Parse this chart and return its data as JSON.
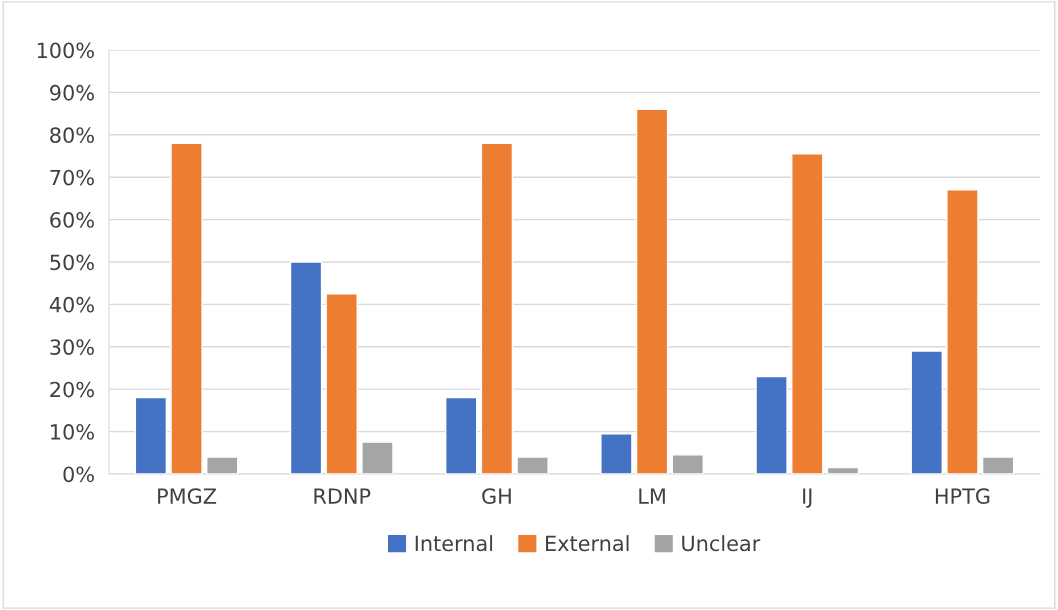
{
  "chart_data": {
    "type": "bar",
    "categories": [
      "PMGZ",
      "RDNP",
      "GH",
      "LM",
      "IJ",
      "HPTG"
    ],
    "series": [
      {
        "name": "Internal",
        "color": "#4472c4",
        "values": [
          18,
          50,
          18,
          9.5,
          23,
          29
        ]
      },
      {
        "name": "External",
        "color": "#ed7d31",
        "values": [
          78,
          42.5,
          78,
          86,
          75.5,
          67
        ]
      },
      {
        "name": "Unclear",
        "color": "#a5a5a5",
        "values": [
          4,
          7.5,
          4,
          4.5,
          1.5,
          4
        ]
      }
    ],
    "ylim": [
      0,
      100
    ],
    "yticks": [
      {
        "value": 0,
        "label": "0%"
      },
      {
        "value": 10,
        "label": "10%"
      },
      {
        "value": 20,
        "label": "20%"
      },
      {
        "value": 30,
        "label": "30%"
      },
      {
        "value": 40,
        "label": "40%"
      },
      {
        "value": 50,
        "label": "50%"
      },
      {
        "value": 60,
        "label": "60%"
      },
      {
        "value": 70,
        "label": "70%"
      },
      {
        "value": 80,
        "label": "80%"
      },
      {
        "value": 90,
        "label": "90%"
      },
      {
        "value": 100,
        "label": "100%"
      }
    ],
    "grid": "y",
    "legend": "bottom"
  }
}
